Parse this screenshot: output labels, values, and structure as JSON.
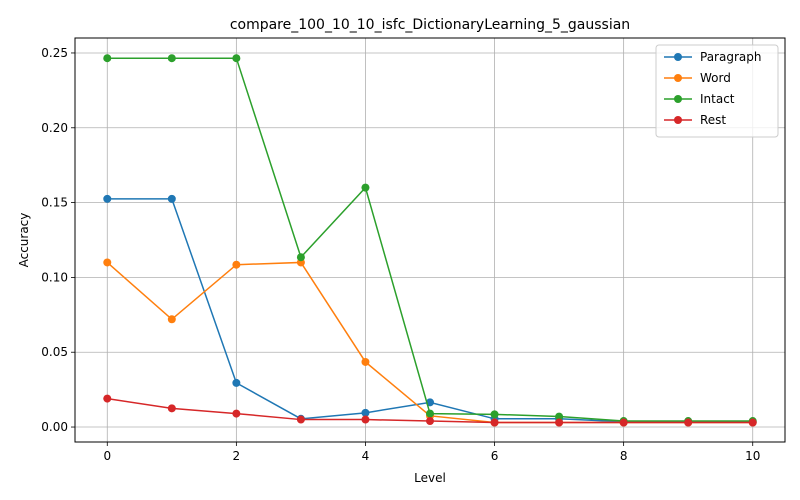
{
  "chart_data": {
    "type": "line",
    "title": "compare_100_10_10_isfc_DictionaryLearning_5_gaussian",
    "xlabel": "Level",
    "ylabel": "Accuracy",
    "x": [
      0,
      1,
      2,
      3,
      4,
      5,
      6,
      7,
      8,
      9,
      10
    ],
    "xlim": [
      -0.5,
      10.5
    ],
    "ylim": [
      -0.01,
      0.26
    ],
    "xticks": [
      "0",
      "2",
      "4",
      "6",
      "8",
      "10"
    ],
    "yticks": [
      "0.00",
      "0.05",
      "0.10",
      "0.15",
      "0.20",
      "0.25"
    ],
    "grid": true,
    "legend_position": "top-right",
    "series": [
      {
        "name": "Paragraph",
        "color": "#1f77b4",
        "values": [
          0.1525,
          0.1525,
          0.0295,
          0.0055,
          0.0095,
          0.0165,
          0.0055,
          0.0055,
          0.0035,
          0.0035,
          0.0035
        ]
      },
      {
        "name": "Word",
        "color": "#ff7f0e",
        "values": [
          0.11,
          0.072,
          0.1085,
          0.11,
          0.0435,
          0.0075,
          0.003,
          0.003,
          0.003,
          0.003,
          0.003
        ]
      },
      {
        "name": "Intact",
        "color": "#2ca02c",
        "values": [
          0.2465,
          0.2465,
          0.2465,
          0.1135,
          0.16,
          0.009,
          0.0085,
          0.007,
          0.004,
          0.004,
          0.004
        ]
      },
      {
        "name": "Rest",
        "color": "#d62728",
        "values": [
          0.019,
          0.0125,
          0.009,
          0.005,
          0.005,
          0.004,
          0.003,
          0.003,
          0.003,
          0.003,
          0.003
        ]
      }
    ]
  }
}
